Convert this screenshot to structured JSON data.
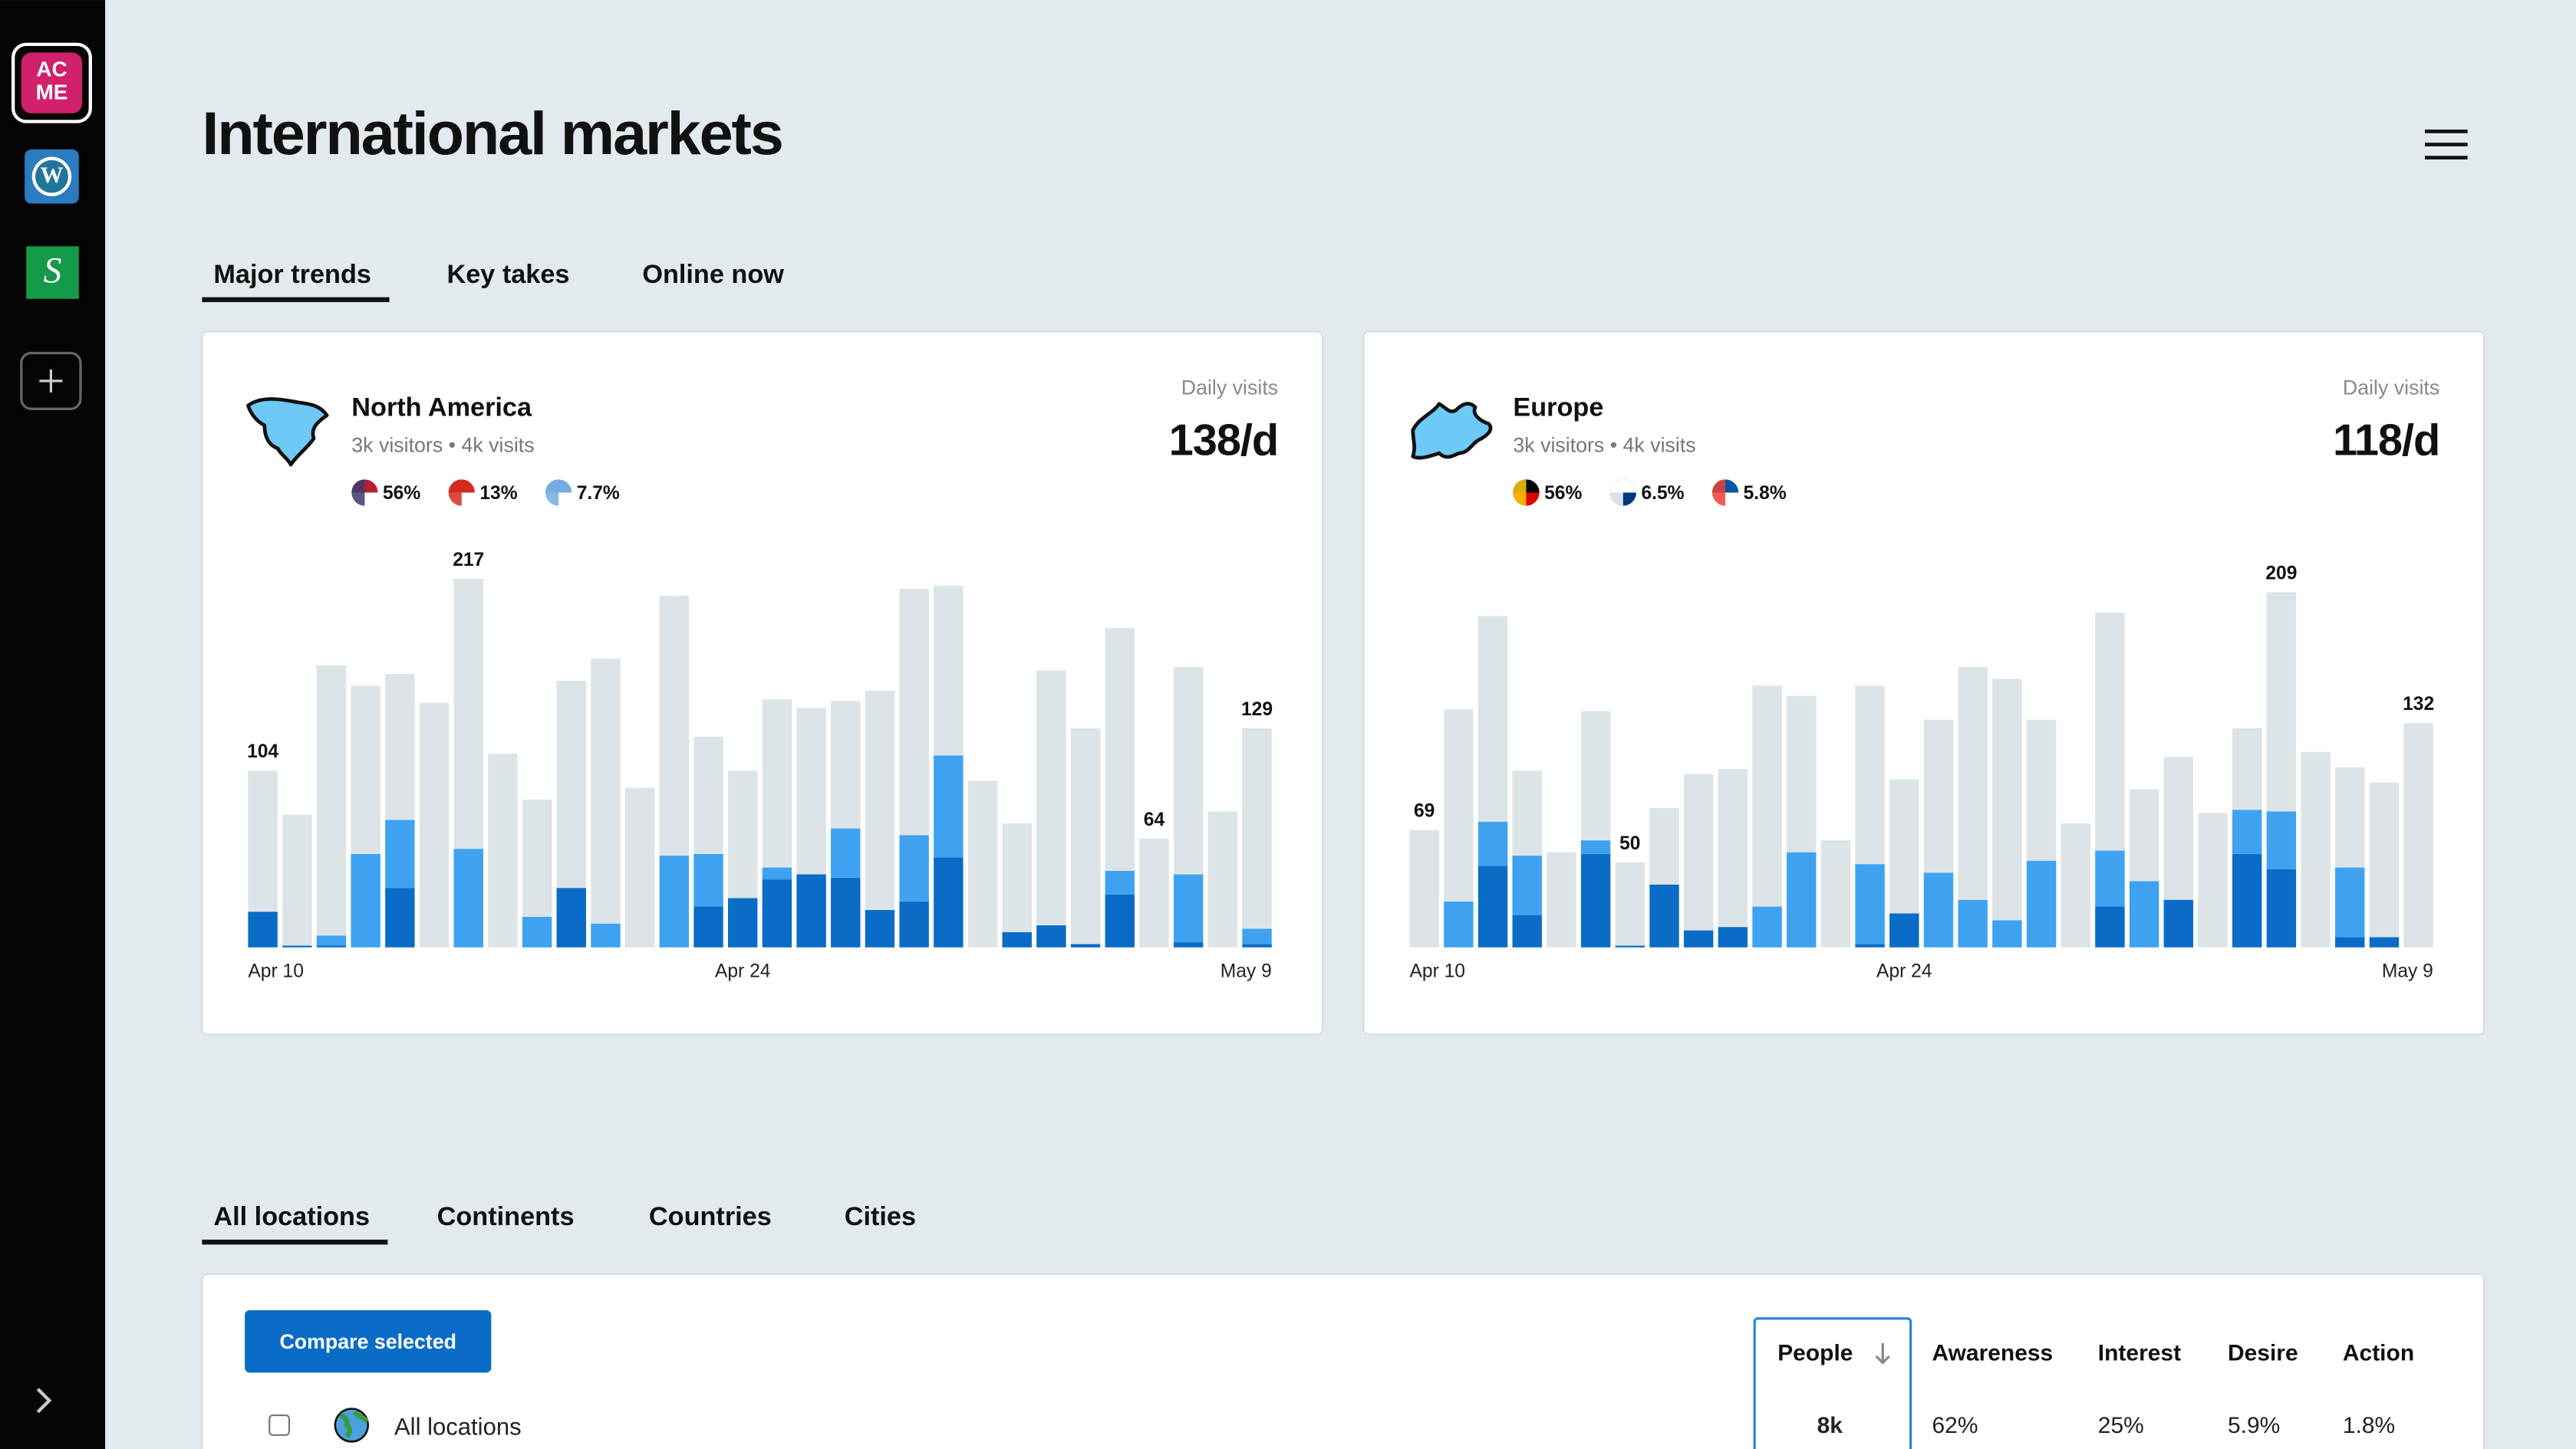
{
  "sidebar": {
    "logo": [
      "AC",
      "ME"
    ]
  },
  "title": "International markets",
  "tabs": [
    "Major trends",
    "Key takes",
    "Online now"
  ],
  "cards": [
    {
      "region": "North America",
      "stats": "3k visitors • 4k visits",
      "flags": [
        "56%",
        "13%",
        "7.7%"
      ],
      "metric_label": "Daily visits",
      "metric": "138/d"
    },
    {
      "region": "Europe",
      "stats": "3k visitors • 4k visits",
      "flags": [
        "56%",
        "6.5%",
        "5.8%"
      ],
      "metric_label": "Daily visits",
      "metric": "118/d"
    }
  ],
  "chart_data": [
    {
      "type": "bar",
      "stacked": true,
      "ylim": [
        0,
        230
      ],
      "categories": [
        "Apr 10",
        null,
        null,
        null,
        null,
        null,
        null,
        null,
        null,
        null,
        null,
        null,
        null,
        null,
        "Apr 24",
        null,
        null,
        null,
        null,
        null,
        null,
        null,
        null,
        null,
        null,
        null,
        null,
        null,
        null,
        "May 9"
      ],
      "series": [
        {
          "color": "#0a6cc6",
          "values": [
            21,
            1,
            1,
            0,
            35,
            0,
            0,
            0,
            0,
            35,
            0,
            0,
            0,
            24,
            29,
            40,
            43,
            41,
            22,
            27,
            53,
            0,
            9,
            13,
            2,
            31,
            0,
            3,
            0,
            2
          ]
        },
        {
          "color": "#3ea2f1",
          "values": [
            0,
            0,
            6,
            55,
            40,
            0,
            58,
            0,
            18,
            0,
            14,
            0,
            54,
            31,
            0,
            7,
            0,
            29,
            0,
            39,
            60,
            0,
            0,
            0,
            0,
            14,
            0,
            40,
            0,
            9
          ]
        },
        {
          "color": "#dce4e7",
          "values": [
            83,
            77,
            159,
            99,
            86,
            144,
            159,
            114,
            69,
            122,
            156,
            94,
            153,
            69,
            75,
            99,
            98,
            75,
            129,
            145,
            100,
            98,
            64,
            150,
            127,
            143,
            64,
            122,
            80,
            118
          ]
        }
      ],
      "totals": [
        104,
        null,
        null,
        null,
        null,
        null,
        217,
        null,
        null,
        null,
        null,
        null,
        null,
        null,
        null,
        null,
        null,
        null,
        null,
        null,
        null,
        null,
        null,
        null,
        null,
        null,
        64,
        null,
        null,
        129
      ]
    },
    {
      "type": "bar",
      "stacked": true,
      "ylim": [
        0,
        230
      ],
      "categories": [
        "Apr 10",
        null,
        null,
        null,
        null,
        null,
        null,
        null,
        null,
        null,
        null,
        null,
        null,
        null,
        "Apr 24",
        null,
        null,
        null,
        null,
        null,
        null,
        null,
        null,
        null,
        null,
        null,
        null,
        null,
        null,
        "May 9"
      ],
      "series": [
        {
          "color": "#0a6cc6",
          "values": [
            0,
            0,
            48,
            19,
            0,
            55,
            1,
            37,
            10,
            12,
            0,
            0,
            0,
            2,
            20,
            0,
            0,
            0,
            0,
            0,
            24,
            0,
            28,
            0,
            55,
            46,
            0,
            6,
            6,
            0
          ]
        },
        {
          "color": "#3ea2f1",
          "values": [
            0,
            27,
            26,
            35,
            0,
            8,
            0,
            0,
            0,
            0,
            24,
            56,
            0,
            47,
            0,
            44,
            28,
            16,
            51,
            0,
            33,
            39,
            0,
            0,
            26,
            34,
            0,
            41,
            0,
            0
          ]
        },
        {
          "color": "#dce4e7",
          "values": [
            69,
            113,
            121,
            50,
            56,
            76,
            49,
            45,
            92,
            93,
            130,
            92,
            63,
            105,
            79,
            90,
            137,
            142,
            83,
            73,
            140,
            54,
            84,
            79,
            48,
            129,
            115,
            59,
            91,
            132
          ]
        }
      ],
      "totals": [
        69,
        null,
        null,
        null,
        null,
        null,
        50,
        null,
        null,
        null,
        null,
        null,
        null,
        null,
        null,
        null,
        null,
        null,
        null,
        null,
        null,
        null,
        null,
        null,
        null,
        209,
        null,
        null,
        null,
        132
      ]
    }
  ],
  "bottom_tabs": [
    "All locations",
    "Continents",
    "Countries",
    "Cities"
  ],
  "button": "Compare selected",
  "table": {
    "header": [
      "People",
      "Awareness",
      "Interest",
      "Desire",
      "Action"
    ],
    "rows": [
      [
        "All locations",
        "8k",
        "62%",
        "25%",
        "5.9%",
        "1.8%"
      ]
    ]
  }
}
